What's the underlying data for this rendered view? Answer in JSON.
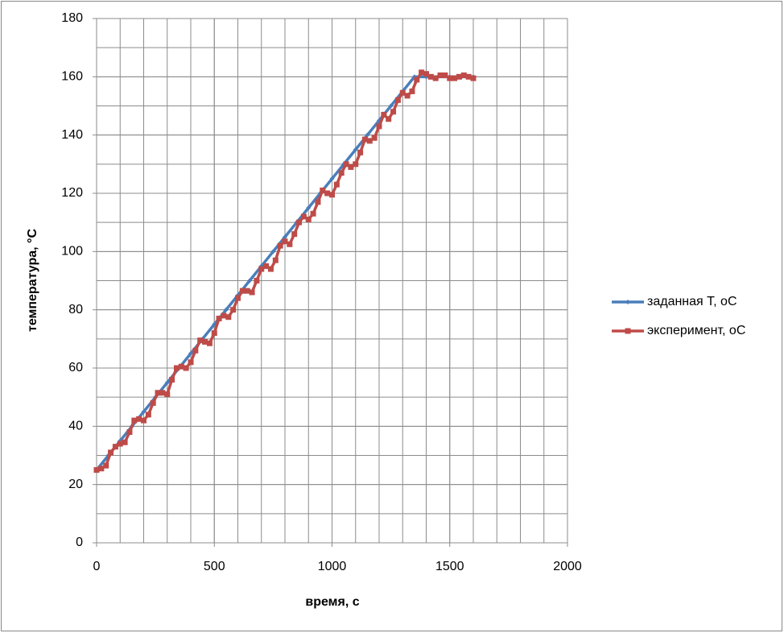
{
  "chart_data": {
    "type": "line",
    "x_label": "время, с",
    "y_label": "температура, °С",
    "xlim": [
      0,
      2000
    ],
    "xticks": [
      0,
      500,
      1000,
      1500,
      2000
    ],
    "ylim": [
      0,
      180
    ],
    "yticks": [
      0,
      20,
      40,
      60,
      80,
      100,
      120,
      140,
      160,
      180
    ],
    "grid": true,
    "minor_grid": true,
    "legend": "right",
    "series": [
      {
        "name": "заданная Т, оС",
        "color": "#4a7ebb",
        "marker": "diamond",
        "x": [
          0,
          50,
          100,
          150,
          200,
          250,
          300,
          350,
          400,
          450,
          500,
          550,
          600,
          650,
          700,
          750,
          800,
          850,
          900,
          950,
          1000,
          1050,
          1100,
          1150,
          1200,
          1250,
          1300,
          1350,
          1400,
          1450,
          1500,
          1550,
          1600
        ],
        "values": [
          25,
          30,
          35,
          40,
          45,
          50,
          55,
          60,
          65,
          70,
          75,
          80,
          85,
          90,
          95,
          100,
          105,
          110,
          115,
          120,
          125,
          130,
          135,
          140,
          145,
          150,
          155,
          160,
          160,
          160,
          160,
          160,
          160
        ]
      },
      {
        "name": "эксперимент, оС",
        "color": "#be4b48",
        "marker": "square",
        "x": [
          0,
          20,
          40,
          60,
          80,
          100,
          120,
          140,
          160,
          180,
          200,
          220,
          240,
          260,
          280,
          300,
          320,
          340,
          360,
          380,
          400,
          420,
          440,
          460,
          480,
          500,
          520,
          540,
          560,
          580,
          600,
          620,
          640,
          660,
          680,
          700,
          720,
          740,
          760,
          780,
          800,
          820,
          840,
          860,
          880,
          900,
          920,
          940,
          960,
          980,
          1000,
          1020,
          1040,
          1060,
          1080,
          1100,
          1120,
          1140,
          1160,
          1180,
          1200,
          1220,
          1240,
          1260,
          1280,
          1300,
          1320,
          1340,
          1360,
          1380,
          1400,
          1420,
          1440,
          1460,
          1480,
          1500,
          1520,
          1540,
          1560,
          1580,
          1600
        ],
        "values": [
          25,
          25.5,
          26.5,
          31,
          33,
          34,
          34.5,
          38,
          42,
          42.5,
          42,
          44,
          48,
          51.5,
          51.5,
          51,
          56,
          60,
          60.5,
          60,
          62,
          66,
          69.5,
          69,
          68.5,
          72,
          77,
          78,
          77.5,
          80,
          84,
          86.5,
          86.5,
          86,
          90,
          94,
          95,
          94,
          97,
          102,
          103.5,
          102.5,
          106,
          110,
          112,
          111,
          113,
          117,
          121,
          120,
          119.5,
          123,
          127,
          130,
          129,
          130,
          134,
          138.5,
          138,
          139,
          143,
          147,
          145.5,
          148,
          152,
          154.5,
          153.5,
          155,
          159,
          161.5,
          161,
          160,
          159.5,
          160.5,
          160.5,
          159.5,
          159.5,
          160,
          160.5,
          160,
          159.5
        ]
      }
    ]
  }
}
